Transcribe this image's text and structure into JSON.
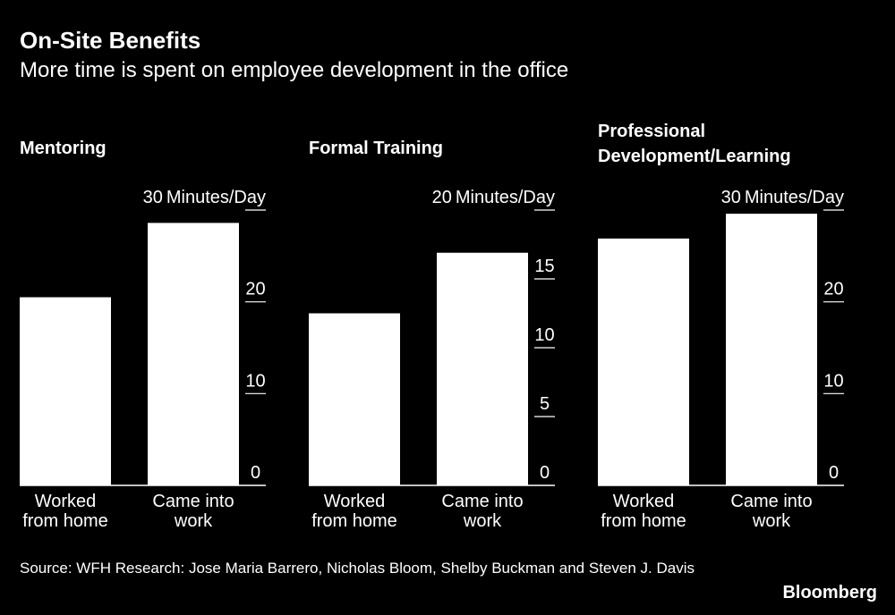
{
  "header": {
    "title": "On-Site Benefits",
    "subtitle": "More time is spent on employee development in the office"
  },
  "footer": {
    "source": "Source: WFH Research: Jose Maria Barrero, Nicholas Bloom, Shelby Buckman and Steven J. Davis",
    "brand": "Bloomberg"
  },
  "colors": {
    "background": "#000000",
    "bar": "#ffffff",
    "text": "#ffffff"
  },
  "chart_data": [
    {
      "type": "bar",
      "title": "Mentoring",
      "unit_label": "Minutes/Day",
      "categories": [
        "Worked from home",
        "Came into work"
      ],
      "category_lines": [
        [
          "Worked",
          "from home"
        ],
        [
          "Came into",
          "work"
        ]
      ],
      "values": [
        20.5,
        28.6
      ],
      "ylim": [
        0,
        30
      ],
      "yticks": [
        0,
        10,
        20,
        30
      ],
      "grid": false
    },
    {
      "type": "bar",
      "title": "Formal Training",
      "unit_label": "Minutes/Day",
      "categories": [
        "Worked from home",
        "Came into work"
      ],
      "category_lines": [
        [
          "Worked",
          "from home"
        ],
        [
          "Came into",
          "work"
        ]
      ],
      "values": [
        12.5,
        16.9
      ],
      "ylim": [
        0,
        20
      ],
      "yticks": [
        0,
        5,
        10,
        15,
        20
      ],
      "grid": false
    },
    {
      "type": "bar",
      "title": "Professional Development/Learning",
      "title_lines": [
        "Professional",
        "Development/Learning"
      ],
      "unit_label": "Minutes/Day",
      "categories": [
        "Worked from home",
        "Came into work"
      ],
      "category_lines": [
        [
          "Worked",
          "from home"
        ],
        [
          "Came into",
          "work"
        ]
      ],
      "values": [
        26.9,
        29.6
      ],
      "ylim": [
        0,
        30
      ],
      "yticks": [
        0,
        10,
        20,
        30
      ],
      "grid": false
    }
  ]
}
